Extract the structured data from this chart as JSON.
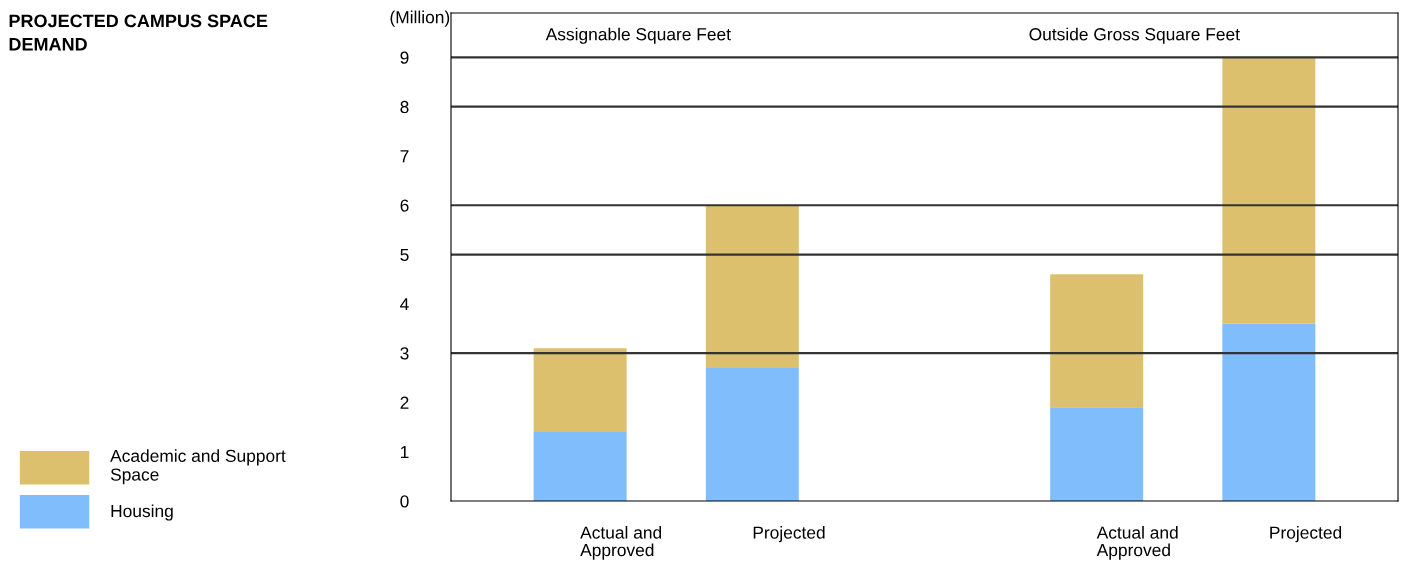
{
  "chart_data": {
    "type": "bar",
    "title": "PROJECTED CAMPUS SPACE\nDEMAND",
    "ylabel": "(Million)",
    "categories": [
      "Actual and\nApproved",
      "Projected",
      null,
      "Actual and\nApproved",
      "Projected"
    ],
    "series": [
      {
        "name": "Housing",
        "color": "#80bdfd",
        "values": [
          1.4,
          2.7,
          null,
          1.9,
          3.6
        ]
      },
      {
        "name": "Academic and Support\nSpace",
        "color": "#dcc06e",
        "values": [
          1.7,
          3.3,
          null,
          2.7,
          5.4
        ]
      }
    ],
    "stacked": true,
    "ylim": [
      0,
      9.9
    ],
    "yticks": [
      0,
      1,
      2,
      3,
      4,
      5,
      6,
      7,
      8,
      9
    ],
    "ref_lines": [
      {
        "axis": "y",
        "value": 3,
        "color": "#333333"
      },
      {
        "axis": "y",
        "value": 5,
        "color": "#333333"
      },
      {
        "axis": "y",
        "value": 6,
        "color": "#333333"
      },
      {
        "axis": "y",
        "value": 8,
        "color": "#333333"
      },
      {
        "axis": "y",
        "value": 9,
        "color": "#333333"
      }
    ],
    "annotations": [
      "Assignable Square Feet",
      "Outside Gross Square Feet"
    ],
    "grid": false,
    "legend": "bottom left"
  }
}
